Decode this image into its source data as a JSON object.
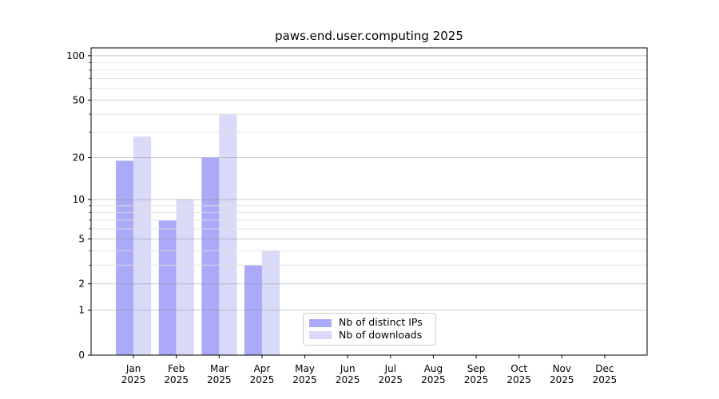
{
  "chart_data": {
    "type": "bar",
    "title": "paws.end.user.computing 2025",
    "categories": [
      "Jan",
      "Feb",
      "Mar",
      "Apr",
      "May",
      "Jun",
      "Jul",
      "Aug",
      "Sep",
      "Oct",
      "Nov",
      "Dec"
    ],
    "year_label": "2025",
    "series": [
      {
        "name": "Nb of distinct IPs",
        "color": "#aaaaf8",
        "values": [
          19,
          7,
          20,
          3,
          0,
          0,
          0,
          0,
          0,
          0,
          0,
          0
        ]
      },
      {
        "name": "Nb of downloads",
        "color": "#d9d9f8",
        "values": [
          28,
          10,
          40,
          4,
          0,
          0,
          0,
          0,
          0,
          0,
          0,
          0
        ]
      }
    ],
    "y_axis": {
      "scale": "log1p",
      "ticks": [
        0,
        1,
        2,
        5,
        10,
        20,
        50,
        100
      ],
      "tick_labels": [
        "0",
        "1",
        "2",
        "5",
        "10",
        "20",
        "50",
        "100"
      ],
      "minor_ticks": [
        3,
        4,
        6,
        7,
        8,
        9,
        30,
        40,
        60,
        70,
        80,
        90
      ],
      "ylim": [
        0,
        113
      ]
    },
    "xlabel": "",
    "ylabel": "",
    "grid": true,
    "legend": {
      "position": "lower center"
    }
  }
}
